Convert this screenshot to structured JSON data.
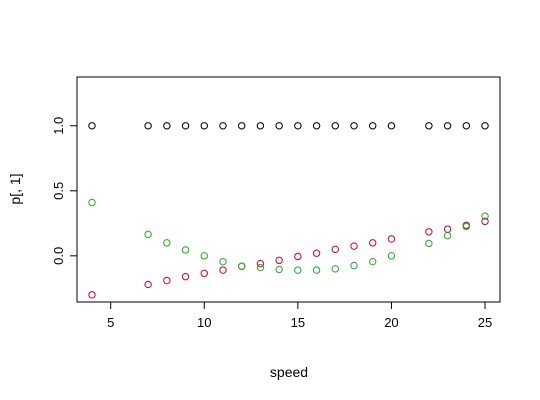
{
  "chart_data": {
    "type": "scatter",
    "title": "",
    "xlabel": "speed",
    "ylabel": "p[, 1]",
    "xlim": [
      3.2,
      25.8
    ],
    "ylim": [
      -0.355,
      1.375
    ],
    "xticks": [
      "5",
      "10",
      "15",
      "20",
      "25"
    ],
    "yticks": [
      "0.0",
      "0.5",
      "1.0"
    ],
    "grid": false,
    "legend": "none",
    "x": [
      4,
      7,
      8,
      9,
      10,
      11,
      12,
      13,
      14,
      15,
      16,
      17,
      18,
      19,
      20,
      22,
      23,
      24,
      25
    ],
    "series": [
      {
        "color": "#000000",
        "values": [
          1.0,
          1.0,
          1.0,
          1.0,
          1.0,
          1.0,
          1.0,
          1.0,
          1.0,
          1.0,
          1.0,
          1.0,
          1.0,
          1.0,
          1.0,
          1.0,
          1.0,
          1.0,
          1.0
        ]
      },
      {
        "color": "#cc0033",
        "values": [
          -0.3,
          -0.22,
          -0.19,
          -0.16,
          -0.135,
          -0.11,
          -0.08,
          -0.06,
          -0.035,
          -0.005,
          0.02,
          0.05,
          0.075,
          0.1,
          0.13,
          0.185,
          0.205,
          0.235,
          0.265
        ]
      },
      {
        "color": "#22aa22",
        "values": [
          0.41,
          0.165,
          0.1,
          0.045,
          0.0,
          -0.045,
          -0.08,
          -0.09,
          -0.105,
          -0.11,
          -0.11,
          -0.1,
          -0.075,
          -0.045,
          0.0,
          0.095,
          0.155,
          0.225,
          0.305
        ]
      }
    ]
  }
}
